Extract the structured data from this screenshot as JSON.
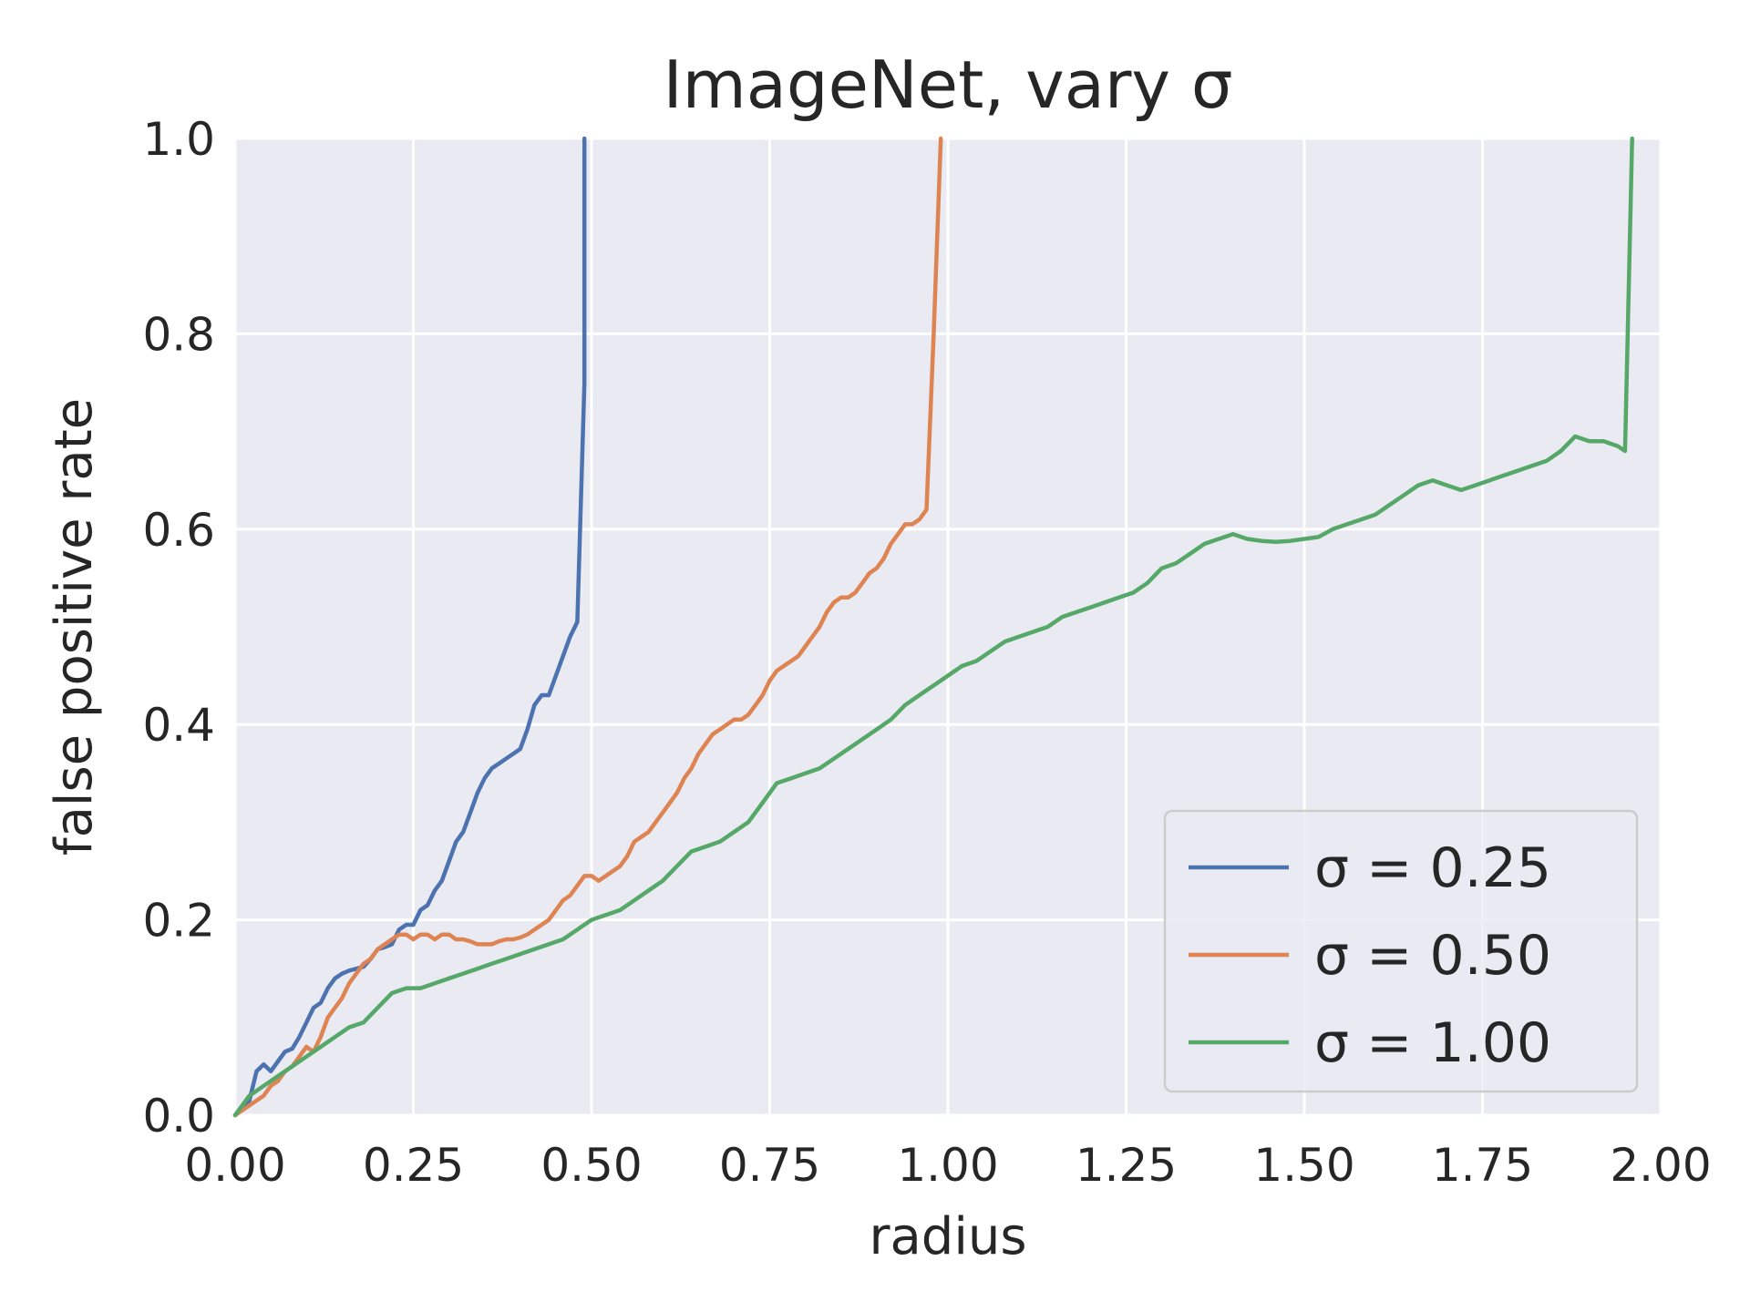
{
  "chart_data": {
    "type": "line",
    "title": "ImageNet, vary σ",
    "xlabel": "radius",
    "ylabel": "false positive rate",
    "xlim": [
      0,
      2
    ],
    "ylim": [
      0,
      1
    ],
    "xticks": [
      "0.00",
      "0.25",
      "0.50",
      "0.75",
      "1.00",
      "1.25",
      "1.50",
      "1.75",
      "2.00"
    ],
    "yticks": [
      "0.0",
      "0.2",
      "0.4",
      "0.6",
      "0.8",
      "1.0"
    ],
    "grid": true,
    "legend_position": "bottom-right",
    "background": "#eaeaf2",
    "series": [
      {
        "name": "σ = 0.25",
        "color": "#4c72b0",
        "x": [
          0.0,
          0.02,
          0.03,
          0.04,
          0.05,
          0.06,
          0.07,
          0.08,
          0.09,
          0.1,
          0.11,
          0.12,
          0.13,
          0.14,
          0.15,
          0.16,
          0.17,
          0.18,
          0.19,
          0.2,
          0.21,
          0.22,
          0.23,
          0.24,
          0.25,
          0.26,
          0.27,
          0.28,
          0.29,
          0.3,
          0.31,
          0.32,
          0.33,
          0.34,
          0.35,
          0.36,
          0.37,
          0.38,
          0.39,
          0.4,
          0.41,
          0.42,
          0.43,
          0.44,
          0.45,
          0.46,
          0.47,
          0.48,
          0.49,
          0.49
        ],
        "y": [
          0.0,
          0.015,
          0.045,
          0.052,
          0.045,
          0.055,
          0.065,
          0.068,
          0.08,
          0.095,
          0.11,
          0.115,
          0.13,
          0.14,
          0.145,
          0.148,
          0.15,
          0.152,
          0.16,
          0.17,
          0.172,
          0.175,
          0.19,
          0.195,
          0.195,
          0.21,
          0.215,
          0.23,
          0.24,
          0.26,
          0.28,
          0.29,
          0.31,
          0.33,
          0.345,
          0.355,
          0.36,
          0.365,
          0.37,
          0.375,
          0.395,
          0.42,
          0.43,
          0.43,
          0.45,
          0.47,
          0.49,
          0.505,
          0.75,
          1.0
        ]
      },
      {
        "name": "σ = 0.50",
        "color": "#dd8452",
        "x": [
          0.0,
          0.02,
          0.04,
          0.05,
          0.06,
          0.07,
          0.08,
          0.09,
          0.1,
          0.11,
          0.12,
          0.13,
          0.14,
          0.15,
          0.16,
          0.17,
          0.18,
          0.19,
          0.2,
          0.21,
          0.22,
          0.23,
          0.24,
          0.25,
          0.26,
          0.27,
          0.28,
          0.29,
          0.3,
          0.31,
          0.32,
          0.33,
          0.34,
          0.35,
          0.36,
          0.37,
          0.38,
          0.39,
          0.4,
          0.41,
          0.42,
          0.43,
          0.44,
          0.45,
          0.46,
          0.47,
          0.48,
          0.49,
          0.5,
          0.51,
          0.52,
          0.53,
          0.54,
          0.55,
          0.56,
          0.57,
          0.58,
          0.59,
          0.6,
          0.61,
          0.62,
          0.63,
          0.64,
          0.65,
          0.66,
          0.67,
          0.68,
          0.69,
          0.7,
          0.71,
          0.72,
          0.73,
          0.74,
          0.75,
          0.76,
          0.77,
          0.78,
          0.79,
          0.8,
          0.81,
          0.82,
          0.83,
          0.84,
          0.85,
          0.86,
          0.87,
          0.88,
          0.89,
          0.9,
          0.91,
          0.92,
          0.93,
          0.94,
          0.95,
          0.96,
          0.97,
          0.98,
          0.99
        ],
        "y": [
          0.0,
          0.01,
          0.02,
          0.03,
          0.035,
          0.045,
          0.05,
          0.06,
          0.07,
          0.065,
          0.08,
          0.1,
          0.11,
          0.12,
          0.135,
          0.145,
          0.155,
          0.16,
          0.17,
          0.175,
          0.18,
          0.185,
          0.185,
          0.18,
          0.185,
          0.185,
          0.18,
          0.185,
          0.185,
          0.18,
          0.18,
          0.178,
          0.175,
          0.175,
          0.175,
          0.178,
          0.18,
          0.18,
          0.182,
          0.185,
          0.19,
          0.195,
          0.2,
          0.21,
          0.22,
          0.225,
          0.235,
          0.245,
          0.245,
          0.24,
          0.245,
          0.25,
          0.255,
          0.265,
          0.28,
          0.285,
          0.29,
          0.3,
          0.31,
          0.32,
          0.33,
          0.345,
          0.355,
          0.37,
          0.38,
          0.39,
          0.395,
          0.4,
          0.405,
          0.405,
          0.41,
          0.42,
          0.43,
          0.445,
          0.455,
          0.46,
          0.465,
          0.47,
          0.48,
          0.49,
          0.5,
          0.515,
          0.525,
          0.53,
          0.53,
          0.535,
          0.545,
          0.555,
          0.56,
          0.57,
          0.585,
          0.595,
          0.605,
          0.605,
          0.61,
          0.62,
          0.8,
          1.0
        ]
      },
      {
        "name": "σ = 1.00",
        "color": "#55a868",
        "x": [
          0.0,
          0.02,
          0.04,
          0.06,
          0.08,
          0.1,
          0.12,
          0.14,
          0.16,
          0.18,
          0.2,
          0.22,
          0.24,
          0.26,
          0.28,
          0.3,
          0.32,
          0.34,
          0.36,
          0.38,
          0.4,
          0.42,
          0.44,
          0.46,
          0.48,
          0.5,
          0.52,
          0.54,
          0.56,
          0.58,
          0.6,
          0.62,
          0.64,
          0.66,
          0.68,
          0.7,
          0.72,
          0.74,
          0.76,
          0.78,
          0.8,
          0.82,
          0.84,
          0.86,
          0.88,
          0.9,
          0.92,
          0.94,
          0.96,
          0.98,
          1.0,
          1.02,
          1.04,
          1.06,
          1.08,
          1.1,
          1.12,
          1.14,
          1.16,
          1.18,
          1.2,
          1.22,
          1.24,
          1.26,
          1.28,
          1.3,
          1.32,
          1.34,
          1.36,
          1.38,
          1.4,
          1.42,
          1.44,
          1.46,
          1.48,
          1.5,
          1.52,
          1.54,
          1.56,
          1.58,
          1.6,
          1.62,
          1.64,
          1.66,
          1.68,
          1.7,
          1.72,
          1.74,
          1.76,
          1.78,
          1.8,
          1.82,
          1.84,
          1.86,
          1.88,
          1.9,
          1.92,
          1.94,
          1.95,
          1.96
        ],
        "y": [
          0.0,
          0.02,
          0.03,
          0.04,
          0.05,
          0.06,
          0.07,
          0.08,
          0.09,
          0.095,
          0.11,
          0.125,
          0.13,
          0.13,
          0.135,
          0.14,
          0.145,
          0.15,
          0.155,
          0.16,
          0.165,
          0.17,
          0.175,
          0.18,
          0.19,
          0.2,
          0.205,
          0.21,
          0.22,
          0.23,
          0.24,
          0.255,
          0.27,
          0.275,
          0.28,
          0.29,
          0.3,
          0.32,
          0.34,
          0.345,
          0.35,
          0.355,
          0.365,
          0.375,
          0.385,
          0.395,
          0.405,
          0.42,
          0.43,
          0.44,
          0.45,
          0.46,
          0.465,
          0.475,
          0.485,
          0.49,
          0.495,
          0.5,
          0.51,
          0.515,
          0.52,
          0.525,
          0.53,
          0.535,
          0.545,
          0.56,
          0.565,
          0.575,
          0.585,
          0.59,
          0.595,
          0.59,
          0.588,
          0.587,
          0.588,
          0.59,
          0.592,
          0.6,
          0.605,
          0.61,
          0.615,
          0.625,
          0.635,
          0.645,
          0.65,
          0.645,
          0.64,
          0.645,
          0.65,
          0.655,
          0.66,
          0.665,
          0.67,
          0.68,
          0.695,
          0.69,
          0.69,
          0.685,
          0.68,
          1.0
        ]
      }
    ]
  }
}
